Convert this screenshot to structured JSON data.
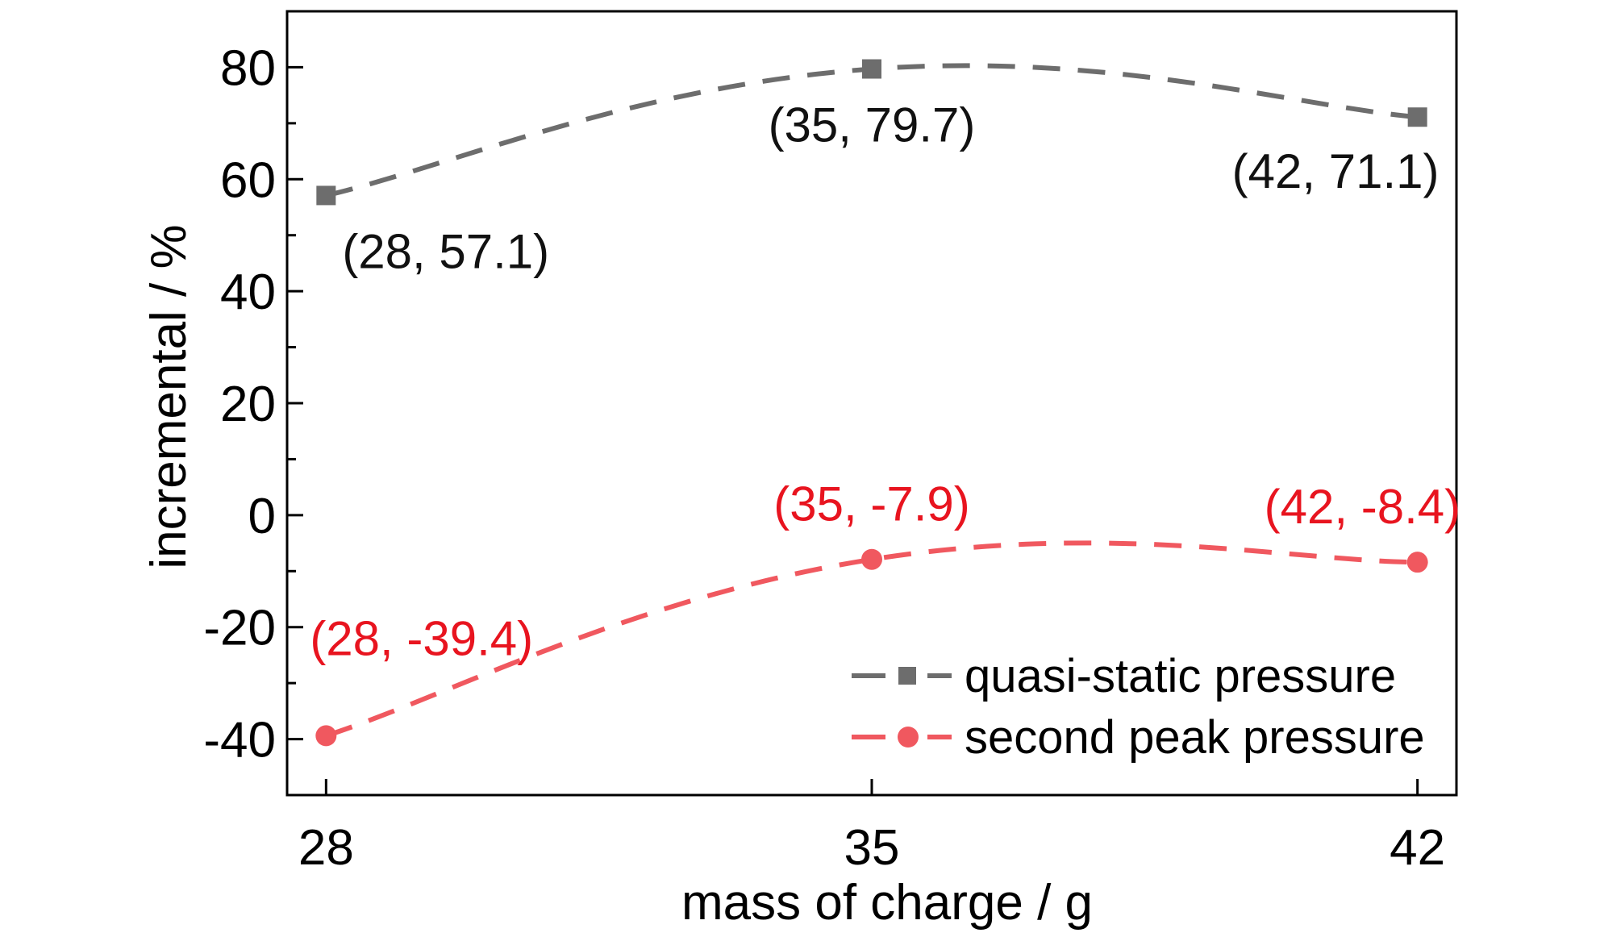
{
  "chart_data": {
    "type": "line",
    "title": "",
    "xlabel": "mass of charge / g",
    "ylabel": "incremental / %",
    "xlim": [
      27.5,
      42.5
    ],
    "ylim": [
      -50,
      90
    ],
    "x_ticks": [
      28,
      35,
      42
    ],
    "y_ticks": [
      -40,
      -20,
      0,
      20,
      40,
      60,
      80
    ],
    "y_tick_labels": [
      "-40",
      "-20",
      "0",
      "20",
      "40",
      "60",
      "80"
    ],
    "grid": false,
    "legend_position": "bottom-right",
    "series": [
      {
        "name": "quasi-static pressure",
        "marker": "square",
        "color": "#6d6d6d",
        "line_style": "dashed",
        "x": [
          28,
          35,
          42
        ],
        "y": [
          57.1,
          79.7,
          71.1
        ],
        "point_labels": [
          "(28, 57.1)",
          "(35, 79.7)",
          "(42, 71.1)"
        ],
        "label_color": "#111111"
      },
      {
        "name": "second peak pressure",
        "marker": "circle",
        "color": "#f0585f",
        "line_style": "dashed",
        "x": [
          28,
          35,
          42
        ],
        "y": [
          -39.4,
          -7.9,
          -8.4
        ],
        "point_labels": [
          "(28, -39.4)",
          "(35, -7.9)",
          "(42, -8.4)"
        ],
        "label_color": "#e8141f"
      }
    ]
  }
}
